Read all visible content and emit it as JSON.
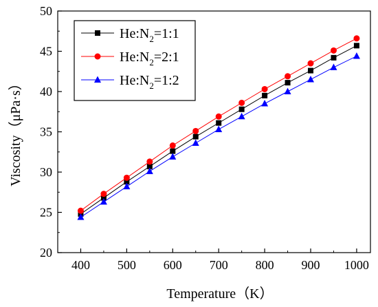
{
  "chart_data": {
    "type": "line",
    "xlabel": "Temperature（K）",
    "ylabel": "Viscosity（μPa·s）",
    "xlim": [
      350,
      1030
    ],
    "ylim": [
      20,
      50
    ],
    "x_ticks": [
      400,
      500,
      600,
      700,
      800,
      900,
      1000
    ],
    "y_ticks": [
      20,
      25,
      30,
      35,
      40,
      45,
      50
    ],
    "x": [
      400,
      450,
      500,
      550,
      600,
      650,
      700,
      750,
      800,
      850,
      900,
      950,
      1000
    ],
    "grid": false,
    "legend_position": "top-left",
    "series": [
      {
        "name": "He:N₂=1:1",
        "legend": {
          "pre": "He:N",
          "sub": "2",
          "post": "=1:1"
        },
        "color": "#000000",
        "marker": "square",
        "values": [
          24.8,
          26.8,
          28.8,
          30.7,
          32.6,
          34.4,
          36.1,
          37.8,
          39.5,
          41.1,
          42.6,
          44.2,
          45.7
        ]
      },
      {
        "name": "He:N₂=2:1",
        "legend": {
          "pre": "He:N",
          "sub": "2",
          "post": "=2:1"
        },
        "color": "#ff0000",
        "marker": "circle",
        "values": [
          25.2,
          27.3,
          29.3,
          31.3,
          33.3,
          35.1,
          36.9,
          38.6,
          40.3,
          41.9,
          43.5,
          45.1,
          46.6
        ]
      },
      {
        "name": "He:N₂=1:2",
        "legend": {
          "pre": "He:N",
          "sub": "2",
          "post": "=1:2"
        },
        "color": "#0000ff",
        "marker": "triangle",
        "values": [
          24.4,
          26.3,
          28.2,
          30.1,
          31.9,
          33.6,
          35.3,
          36.9,
          38.5,
          40.0,
          41.5,
          43.0,
          44.4
        ]
      }
    ]
  }
}
